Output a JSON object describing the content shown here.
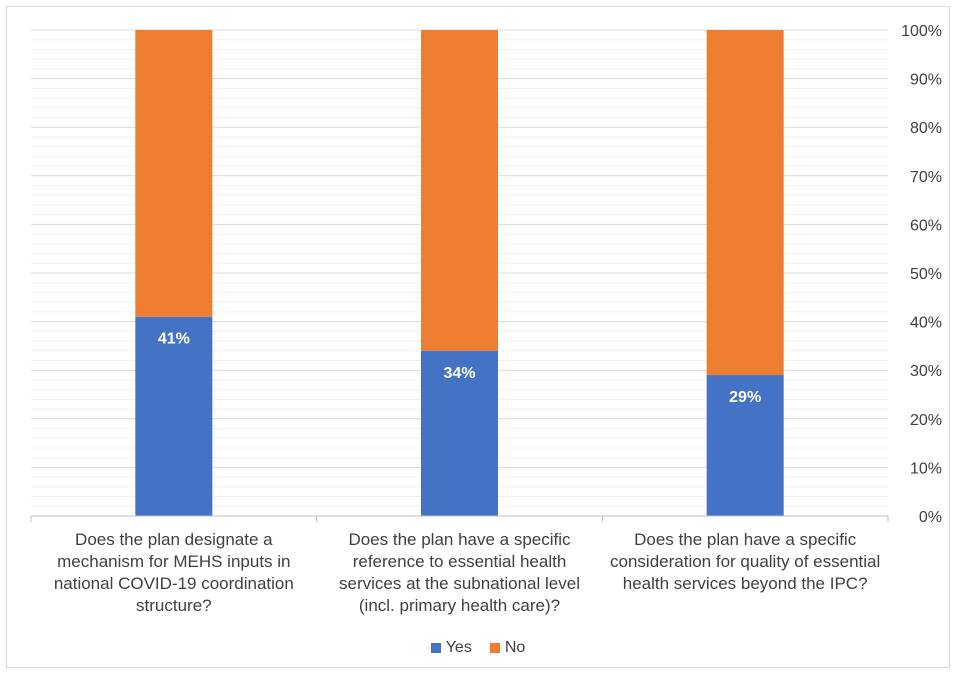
{
  "chart_data": {
    "type": "bar",
    "stacked": true,
    "percent": true,
    "categories": [
      "Does the plan designate a mechanism for MEHS inputs in national COVID-19 coordination structure?",
      "Does the plan have a specific reference to essential health services at the subnational level (incl. primary health care)?",
      "Does the plan have a specific consideration for quality of essential health services beyond the IPC?"
    ],
    "series": [
      {
        "name": "Yes",
        "values": [
          41,
          34,
          29
        ],
        "color": "#4472c4"
      },
      {
        "name": "No",
        "values": [
          59,
          66,
          71
        ],
        "color": "#ed7d31"
      }
    ],
    "data_labels": [
      "41%",
      "34%",
      "29%"
    ],
    "y_ticks": [
      "0%",
      "10%",
      "20%",
      "30%",
      "40%",
      "50%",
      "60%",
      "70%",
      "80%",
      "90%",
      "100%"
    ],
    "ylim": [
      0,
      100
    ],
    "y_axis_position": "right",
    "legend_position": "bottom",
    "grid": true
  }
}
